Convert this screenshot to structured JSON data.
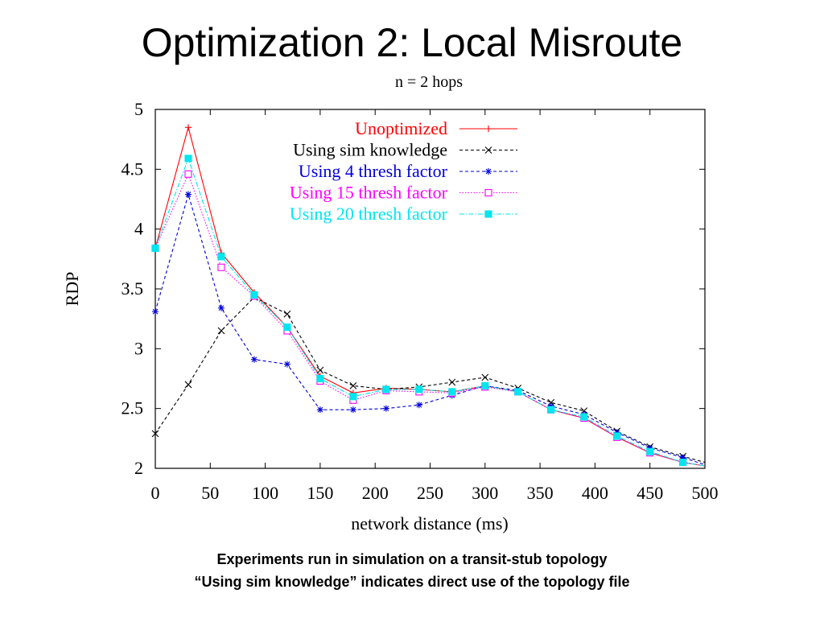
{
  "slide": {
    "title": "Optimization 2: Local Misroute",
    "caption_line1": "Experiments run in simulation on a transit-stub topology",
    "caption_line2": "“Using sim knowledge” indicates direct use of the topology file"
  },
  "chart_data": {
    "type": "line",
    "title": "n = 2 hops",
    "xlabel": "network distance (ms)",
    "ylabel": "RDP",
    "xlim": [
      0,
      500
    ],
    "ylim": [
      2,
      5
    ],
    "xticks": [
      0,
      50,
      100,
      150,
      200,
      250,
      300,
      350,
      400,
      450,
      500
    ],
    "yticks": [
      2,
      2.5,
      3,
      3.5,
      4,
      4.5,
      5
    ],
    "ytick_labels": [
      "2",
      "2.5",
      "3",
      "3.5",
      "4",
      "4.5",
      "5"
    ],
    "grid": false,
    "legend_position": "top-right",
    "series": [
      {
        "name": "Unoptimized",
        "color": "#ff0000",
        "marker": "plus",
        "dash": "solid",
        "x": [
          0,
          30,
          60,
          90,
          120,
          150,
          180,
          210,
          240,
          270,
          300,
          330,
          360,
          390,
          420,
          450,
          480,
          500
        ],
        "y": [
          3.84,
          4.85,
          3.8,
          3.47,
          3.18,
          2.77,
          2.63,
          2.67,
          2.66,
          2.64,
          2.69,
          2.64,
          2.49,
          2.42,
          2.26,
          2.13,
          2.05,
          2.02
        ]
      },
      {
        "name": "Using sim knowledge",
        "color": "#000000",
        "marker": "x",
        "dash": "dashed",
        "x": [
          0,
          30,
          60,
          90,
          120,
          150,
          180,
          210,
          240,
          270,
          300,
          330,
          360,
          390,
          420,
          450,
          480,
          500
        ],
        "y": [
          2.29,
          2.7,
          3.15,
          3.43,
          3.29,
          2.82,
          2.69,
          2.66,
          2.68,
          2.72,
          2.76,
          2.67,
          2.55,
          2.48,
          2.31,
          2.18,
          2.1,
          2.05
        ]
      },
      {
        "name": "Using 4 thresh factor",
        "color": "#0000dd",
        "marker": "asterisk",
        "dash": "dashed",
        "x": [
          0,
          30,
          60,
          90,
          120,
          150,
          180,
          210,
          240,
          270,
          300,
          330,
          360,
          390,
          420,
          450,
          480,
          500
        ],
        "y": [
          3.31,
          4.29,
          3.34,
          2.91,
          2.87,
          2.49,
          2.49,
          2.5,
          2.53,
          2.61,
          2.69,
          2.65,
          2.52,
          2.45,
          2.3,
          2.17,
          2.09,
          2.03
        ]
      },
      {
        "name": "Using 15 thresh factor",
        "color": "#ff00ff",
        "marker": "square",
        "dash": "dotted",
        "x": [
          0,
          30,
          60,
          90,
          120,
          150,
          180,
          210,
          240,
          270,
          300,
          330,
          360,
          390,
          420,
          450,
          480,
          500
        ],
        "y": [
          3.84,
          4.46,
          3.68,
          3.44,
          3.15,
          2.73,
          2.57,
          2.65,
          2.64,
          2.63,
          2.68,
          2.64,
          2.49,
          2.42,
          2.26,
          2.13,
          2.05,
          2.02
        ]
      },
      {
        "name": "Using 20 thresh factor",
        "color": "#00e5ee",
        "marker": "filled-square",
        "dash": "dashdot",
        "x": [
          0,
          30,
          60,
          90,
          120,
          150,
          180,
          210,
          240,
          270,
          300,
          330,
          360,
          390,
          420,
          450,
          480,
          500
        ],
        "y": [
          3.84,
          4.59,
          3.77,
          3.45,
          3.18,
          2.75,
          2.6,
          2.66,
          2.66,
          2.64,
          2.69,
          2.64,
          2.49,
          2.43,
          2.27,
          2.14,
          2.05,
          2.02
        ]
      }
    ]
  }
}
